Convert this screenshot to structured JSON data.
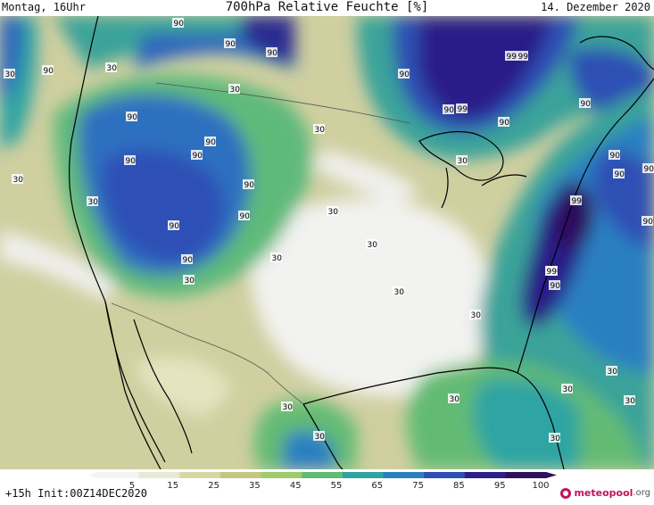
{
  "header": {
    "left": "Montag, 16Uhr",
    "title": "700hPa Relative Feuchte [%]",
    "date": "14. Dezember 2020"
  },
  "footer": {
    "init": "+15h Init:00Z14DEC2020",
    "logo_main": "meteopool",
    "logo_tld": ".org"
  },
  "legend": {
    "ticks": [
      "5",
      "15",
      "25",
      "35",
      "45",
      "55",
      "65",
      "75",
      "85",
      "95",
      "100"
    ],
    "colors": [
      "#f4f4f4",
      "#e8e8d6",
      "#d8d6a6",
      "#c6c582",
      "#9fcb6b",
      "#64bb73",
      "#2fa4a3",
      "#2a7fc1",
      "#2d4fb4",
      "#2d1f8a",
      "#2e1060"
    ]
  },
  "contour_labels": [
    "90",
    "90",
    "90",
    "90",
    "90",
    "90",
    "90",
    "90",
    "90",
    "90",
    "90",
    "90",
    "90",
    "90",
    "90",
    "90",
    "90",
    "90",
    "90",
    "90",
    "90",
    "90",
    "99",
    "99",
    "99",
    "99",
    "99",
    "30",
    "30",
    "30",
    "30",
    "30",
    "30",
    "30",
    "30",
    "30",
    "30",
    "30",
    "30",
    "30",
    "30",
    "30",
    "30",
    "30",
    "30",
    "30",
    "30",
    "30"
  ]
}
